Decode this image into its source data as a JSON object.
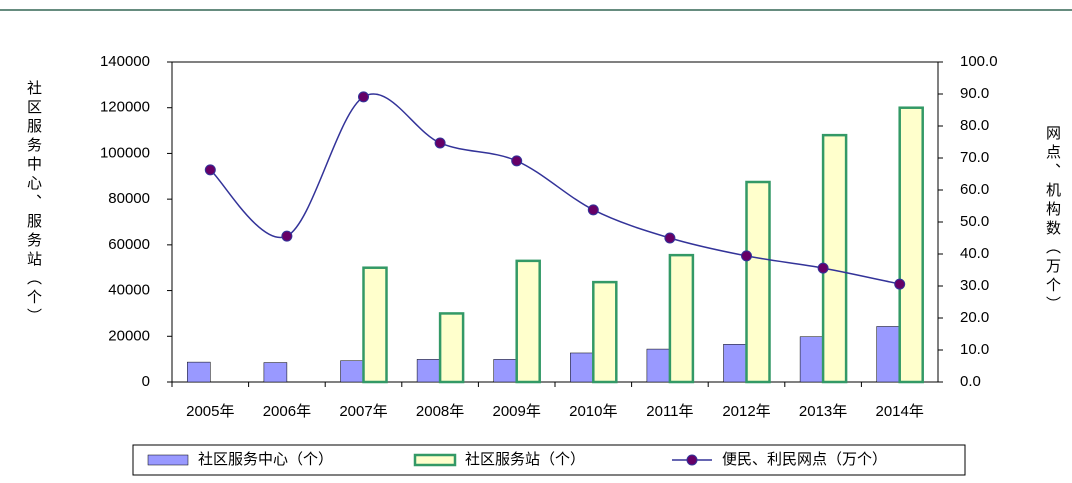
{
  "chart_data": {
    "type": "bar_line",
    "categories": [
      "2005年",
      "2006年",
      "2007年",
      "2008年",
      "2009年",
      "2010年",
      "2011年",
      "2012年",
      "2013年",
      "2014年"
    ],
    "ylabel": "社区服务中心、服务站（个）",
    "y2label": "网点、机构数（万个）",
    "ylim": [
      0,
      140000
    ],
    "yticks": [
      0,
      20000,
      40000,
      60000,
      80000,
      100000,
      120000,
      140000
    ],
    "y2lim": [
      0,
      100
    ],
    "y2ticks": [
      {
        "value": 0,
        "label": "0.0"
      },
      {
        "value": 10,
        "label": "10.0"
      },
      {
        "value": 20,
        "label": "20.0"
      },
      {
        "value": 30,
        "label": "30.0"
      },
      {
        "value": 40,
        "label": "40.0"
      },
      {
        "value": 50,
        "label": "50.0"
      },
      {
        "value": 60,
        "label": "60.0"
      },
      {
        "value": 70,
        "label": "70.0"
      },
      {
        "value": 80,
        "label": "80.0"
      },
      {
        "value": 90,
        "label": "90.0"
      },
      {
        "value": 100,
        "label": "100.0"
      }
    ],
    "series": [
      {
        "name": "社区服务中心（个）",
        "color": "#9999ff",
        "kind": "bar",
        "values": [
          8700,
          8500,
          9300,
          9900,
          9900,
          12700,
          14400,
          16500,
          19800,
          24300
        ]
      },
      {
        "name": "社区服务站（个）",
        "color": "#ffffcc",
        "edge": "#339966",
        "kind": "bar",
        "values": [
          0,
          0,
          50000,
          30000,
          53000,
          43700,
          55500,
          87500,
          108000,
          120000
        ]
      },
      {
        "name": "便民、利民网点（万个）",
        "color": "#660066",
        "line": "#333399",
        "kind": "line",
        "axis": "y2",
        "values": [
          66.3,
          45.6,
          89.1,
          74.7,
          69.1,
          53.8,
          45.0,
          39.4,
          35.6,
          30.6
        ]
      }
    ]
  }
}
